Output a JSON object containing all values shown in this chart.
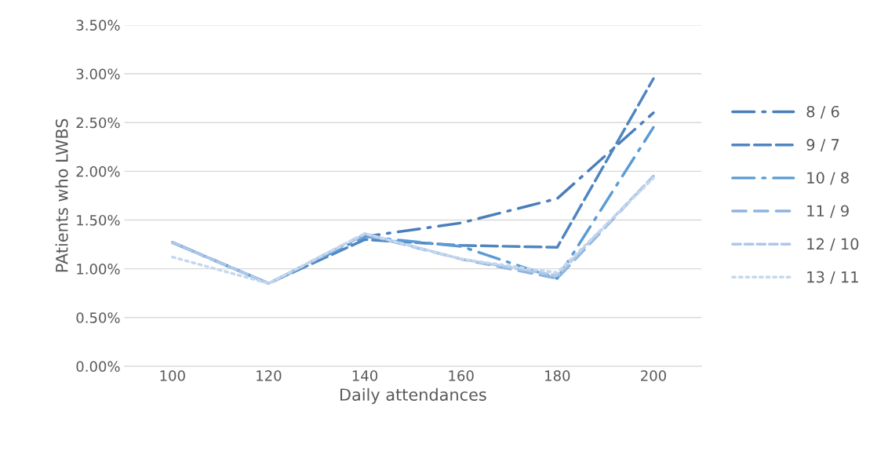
{
  "chart_data": {
    "type": "line",
    "xlabel": "Daily attendances",
    "ylabel": "PAtients who LWBS",
    "categories": [
      "100",
      "120",
      "140",
      "160",
      "180",
      "200"
    ],
    "series": [
      {
        "name": "8 / 6",
        "color": "#4a7ebb",
        "line_style": "dashdot",
        "values": [
          1.27,
          0.85,
          1.33,
          1.47,
          1.72,
          2.6
        ]
      },
      {
        "name": "9 / 7",
        "color": "#4f86c0",
        "line_style": "longdash",
        "values": [
          1.27,
          0.85,
          1.3,
          1.24,
          1.22,
          2.95
        ]
      },
      {
        "name": "10 / 8",
        "color": "#5b9bd5",
        "line_style": "dashdot",
        "values": [
          1.27,
          0.85,
          1.33,
          1.23,
          0.9,
          2.45
        ]
      },
      {
        "name": "11 / 9",
        "color": "#8fb3de",
        "line_style": "dashed",
        "values": [
          1.27,
          0.85,
          1.35,
          1.1,
          0.9,
          1.95
        ]
      },
      {
        "name": "12 / 10",
        "color": "#adc8e8",
        "line_style": "shortdash",
        "values": [
          1.27,
          0.85,
          1.36,
          1.1,
          0.93,
          1.95
        ]
      },
      {
        "name": "13 / 11",
        "color": "#c5d7ee",
        "line_style": "dotted",
        "values": [
          1.12,
          0.85,
          1.36,
          1.1,
          0.96,
          1.93
        ]
      }
    ],
    "ylim": [
      0,
      3.5
    ],
    "yticks": [
      {
        "value": 0,
        "label": "0.00%"
      },
      {
        "value": 0.5,
        "label": "0.50%"
      },
      {
        "value": 1,
        "label": "1.00%"
      },
      {
        "value": 1.5,
        "label": "1.50%"
      },
      {
        "value": 2,
        "label": "2.00%"
      },
      {
        "value": 2.5,
        "label": "2.50%"
      },
      {
        "value": 3,
        "label": "3.00%"
      },
      {
        "value": 3.5,
        "label": "3.50%"
      }
    ],
    "grid": "y",
    "legend": "right",
    "marker": "none"
  }
}
